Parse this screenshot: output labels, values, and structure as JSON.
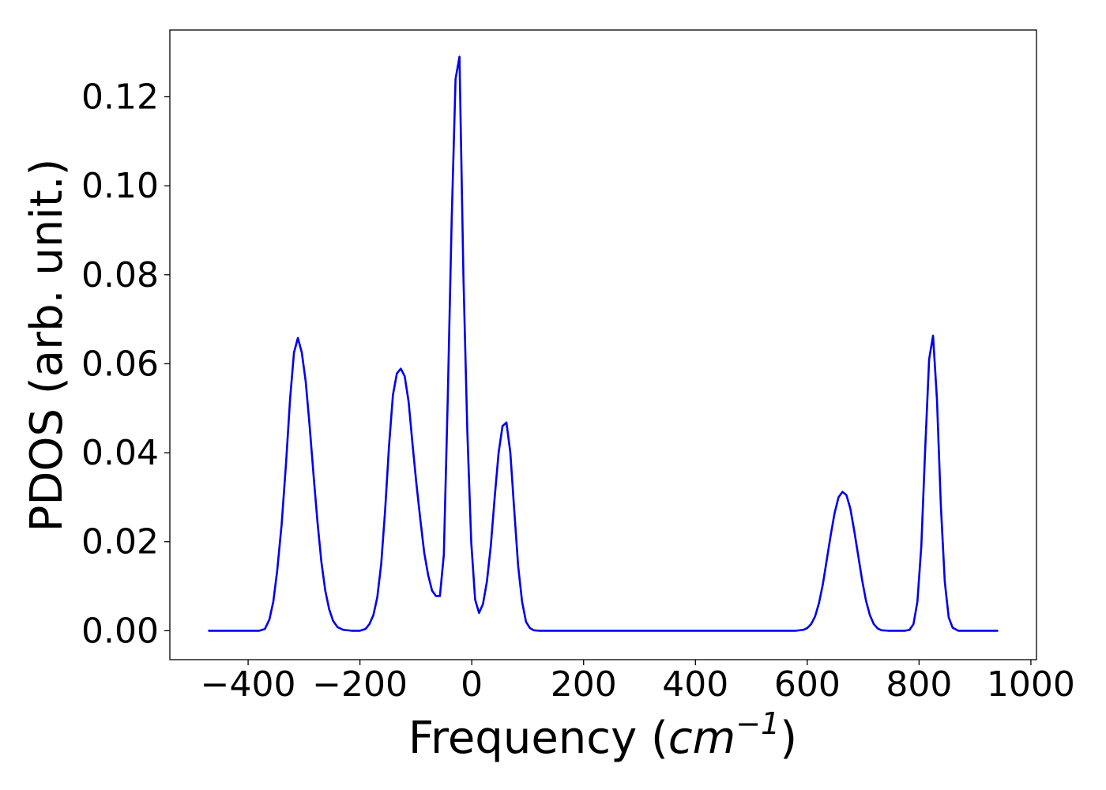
{
  "chart_data": {
    "type": "line",
    "title": "",
    "xlabel_prefix": "Frequency (",
    "xlabel_unit": "cm",
    "xlabel_exponent": "−1",
    "xlabel_suffix": ")",
    "ylabel": "PDOS (arb. unit.)",
    "xlim": [
      -540,
      1010
    ],
    "ylim": [
      -0.0065,
      0.135
    ],
    "grid": false,
    "legend": "none",
    "x_ticks": [
      {
        "value": -400,
        "label": "−400"
      },
      {
        "value": -200,
        "label": "−200"
      },
      {
        "value": 0,
        "label": "0"
      },
      {
        "value": 200,
        "label": "200"
      },
      {
        "value": 400,
        "label": "400"
      },
      {
        "value": 600,
        "label": "600"
      },
      {
        "value": 800,
        "label": "800"
      },
      {
        "value": 1000,
        "label": "1000"
      }
    ],
    "y_ticks": [
      {
        "value": 0.0,
        "label": "0.00"
      },
      {
        "value": 0.02,
        "label": "0.02"
      },
      {
        "value": 0.04,
        "label": "0.04"
      },
      {
        "value": 0.06,
        "label": "0.06"
      },
      {
        "value": 0.08,
        "label": "0.08"
      },
      {
        "value": 0.1,
        "label": "0.10"
      },
      {
        "value": 0.12,
        "label": "0.12"
      }
    ],
    "series": [
      {
        "color": "#0000ee",
        "x": [
          -470,
          -380,
          -370,
          -362,
          -355,
          -348,
          -340,
          -332,
          -325,
          -318,
          -311,
          -304,
          -297,
          -290,
          -283,
          -276,
          -269,
          -262,
          -255,
          -248,
          -240,
          -230,
          -215,
          -200,
          -190,
          -183,
          -176,
          -169,
          -162,
          -155,
          -148,
          -141,
          -134,
          -127,
          -120,
          -113,
          -106,
          -99,
          -92,
          -85,
          -78,
          -71,
          -64,
          -57,
          -50,
          -43,
          -36,
          -29,
          -22,
          -15,
          -8,
          -1,
          6,
          13,
          20,
          27,
          34,
          41,
          48,
          55,
          62,
          69,
          76,
          83,
          90,
          97,
          104,
          111,
          120,
          140,
          580,
          593,
          600,
          607,
          614,
          621,
          628,
          635,
          642,
          649,
          656,
          663,
          670,
          677,
          684,
          691,
          698,
          705,
          712,
          719,
          726,
          733,
          745,
          775,
          783,
          790,
          797,
          804,
          811,
          818,
          825,
          832,
          839,
          846,
          853,
          860,
          870,
          940
        ],
        "y": [
          0.0,
          0.0,
          0.0004,
          0.0025,
          0.0065,
          0.0135,
          0.024,
          0.038,
          0.052,
          0.0625,
          0.0658,
          0.0625,
          0.056,
          0.046,
          0.035,
          0.0245,
          0.0155,
          0.009,
          0.0048,
          0.0022,
          0.0008,
          0.0002,
          0.0,
          0.0,
          0.0004,
          0.0015,
          0.0035,
          0.0075,
          0.015,
          0.027,
          0.0415,
          0.053,
          0.0578,
          0.0589,
          0.0572,
          0.0515,
          0.042,
          0.033,
          0.025,
          0.0175,
          0.0125,
          0.009,
          0.0078,
          0.0078,
          0.017,
          0.052,
          0.092,
          0.124,
          0.129,
          0.08,
          0.045,
          0.02,
          0.007,
          0.004,
          0.006,
          0.011,
          0.019,
          0.03,
          0.04,
          0.046,
          0.0468,
          0.04,
          0.027,
          0.0145,
          0.0065,
          0.002,
          0.0006,
          0.0001,
          0.0,
          0.0,
          0.0,
          0.0002,
          0.0006,
          0.0015,
          0.0032,
          0.0062,
          0.0105,
          0.016,
          0.0215,
          0.0265,
          0.03,
          0.0312,
          0.0305,
          0.0275,
          0.0225,
          0.017,
          0.0115,
          0.0068,
          0.0035,
          0.0015,
          0.0005,
          0.0001,
          0.0,
          0.0,
          0.0002,
          0.0015,
          0.0065,
          0.019,
          0.041,
          0.061,
          0.0663,
          0.052,
          0.028,
          0.011,
          0.003,
          0.0007,
          0.0,
          0.0
        ]
      }
    ]
  }
}
